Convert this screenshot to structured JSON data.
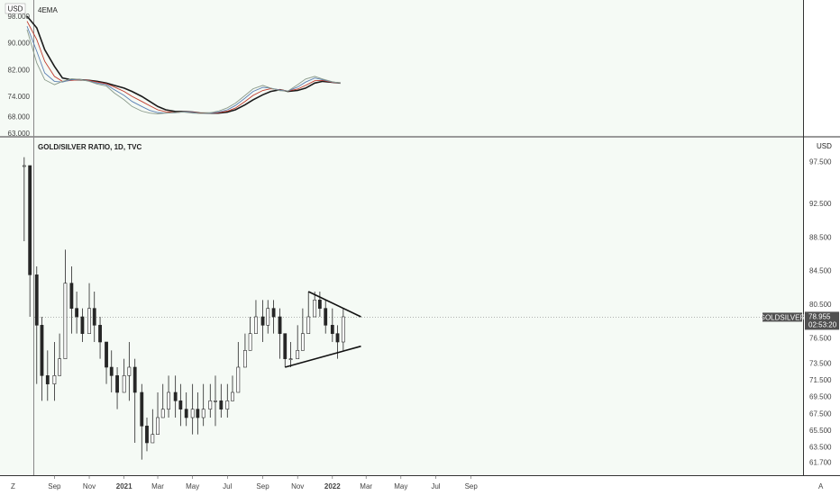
{
  "currency": "USD",
  "indicator": {
    "name": "4EMA",
    "y_ticks": [
      "98.000",
      "90.000",
      "82.000",
      "74.000",
      "68.000",
      "63.000"
    ]
  },
  "main": {
    "title": "GOLD/SILVER RATIO, 1D, TVC",
    "y_ticks": [
      "97.500",
      "92.500",
      "88.500",
      "84.500",
      "80.500",
      "76.500",
      "73.500",
      "71.500",
      "69.500",
      "67.500",
      "65.500",
      "63.500",
      "61.700"
    ],
    "last_symbol": "GOLDSILVER",
    "last_price": "78.955",
    "countdown": "02:53:20"
  },
  "x_ticks": [
    "Sep",
    "Nov",
    "2021",
    "Mar",
    "May",
    "Jul",
    "Sep",
    "Nov",
    "2022",
    "Mar",
    "May",
    "Jul",
    "Sep"
  ],
  "footer": {
    "tz_label": "Z",
    "scale_label": "A"
  },
  "colors": {
    "bg": "#ffffff",
    "plot_bg": "#f5faf5",
    "candle": "#262626",
    "ema_black": "#1a1a1a",
    "ema_red": "#c0392b",
    "ema_blue": "#5b7fb3",
    "ema_gray": "#8a9a8a",
    "badge": "#505050"
  },
  "chart_data": [
    {
      "type": "line",
      "title": "4EMA",
      "x": [
        "2020-07-15",
        "2020-08-01",
        "2020-08-15",
        "2020-09-01",
        "2020-09-15",
        "2020-10-01",
        "2020-10-15",
        "2020-11-01",
        "2020-11-15",
        "2020-12-01",
        "2020-12-15",
        "2021-01-01",
        "2021-01-15",
        "2021-02-01",
        "2021-02-15",
        "2021-03-01",
        "2021-03-15",
        "2021-04-01",
        "2021-04-15",
        "2021-05-01",
        "2021-05-15",
        "2021-06-01",
        "2021-06-15",
        "2021-07-01",
        "2021-07-15",
        "2021-08-01",
        "2021-08-15",
        "2021-09-01",
        "2021-09-15",
        "2021-10-01",
        "2021-10-15",
        "2021-11-01",
        "2021-11-15",
        "2021-12-01",
        "2021-12-15",
        "2022-01-01",
        "2022-01-15"
      ],
      "series": [
        {
          "values": [
            98.0,
            94.5,
            88.0,
            83.0,
            79.5,
            79.0,
            79.0,
            78.8,
            78.5,
            78.0,
            77.3,
            76.5,
            75.5,
            74.0,
            72.5,
            71.0,
            70.0,
            69.5,
            69.5,
            69.3,
            69.0,
            69.0,
            69.0,
            69.3,
            70.0,
            71.5,
            73.0,
            74.5,
            75.5,
            76.0,
            75.5,
            75.8,
            76.5,
            78.0,
            78.5,
            78.2,
            78.0
          ]
        },
        {
          "values": [
            96.5,
            91.0,
            84.5,
            80.0,
            78.5,
            78.8,
            79.0,
            78.8,
            78.3,
            77.8,
            76.8,
            75.5,
            74.0,
            72.5,
            71.2,
            70.0,
            69.4,
            69.2,
            69.4,
            69.3,
            69.0,
            69.0,
            69.1,
            69.6,
            70.5,
            72.5,
            74.3,
            75.8,
            76.3,
            76.0,
            75.6,
            76.2,
            77.3,
            78.7,
            78.8,
            78.2,
            78.0
          ]
        },
        {
          "values": [
            95.0,
            87.5,
            81.0,
            78.5,
            78.3,
            79.0,
            79.1,
            78.6,
            78.0,
            77.5,
            76.0,
            74.3,
            72.5,
            71.0,
            69.8,
            69.2,
            69.0,
            69.1,
            69.4,
            69.2,
            68.9,
            69.0,
            69.3,
            70.0,
            71.3,
            73.5,
            75.5,
            76.7,
            76.5,
            75.9,
            75.6,
            76.8,
            78.3,
            79.5,
            79.0,
            78.3,
            78.0
          ]
        },
        {
          "values": [
            94.0,
            84.0,
            79.0,
            77.5,
            78.5,
            79.3,
            79.1,
            78.5,
            77.7,
            77.1,
            75.0,
            73.0,
            71.0,
            69.6,
            69.0,
            68.8,
            69.0,
            69.2,
            69.3,
            69.0,
            68.9,
            69.1,
            69.6,
            70.6,
            72.0,
            74.3,
            76.3,
            77.3,
            76.5,
            75.7,
            75.6,
            77.5,
            79.2,
            80.0,
            79.2,
            78.4,
            78.0
          ]
        }
      ]
    },
    {
      "type": "candlestick",
      "title": "GOLD/SILVER RATIO, 1D, TVC",
      "ylim": [
        61.0,
        98.5
      ],
      "x": [
        "2020-07-10",
        "2020-07-20",
        "2020-08-01",
        "2020-08-10",
        "2020-08-20",
        "2020-09-01",
        "2020-09-10",
        "2020-09-20",
        "2020-10-01",
        "2020-10-10",
        "2020-10-20",
        "2020-11-01",
        "2020-11-10",
        "2020-11-20",
        "2020-12-01",
        "2020-12-10",
        "2020-12-20",
        "2021-01-01",
        "2021-01-10",
        "2021-01-20",
        "2021-02-01",
        "2021-02-10",
        "2021-02-20",
        "2021-03-01",
        "2021-03-10",
        "2021-03-20",
        "2021-04-01",
        "2021-04-10",
        "2021-04-20",
        "2021-05-01",
        "2021-05-10",
        "2021-05-20",
        "2021-06-01",
        "2021-06-10",
        "2021-06-20",
        "2021-07-01",
        "2021-07-10",
        "2021-07-20",
        "2021-08-01",
        "2021-08-10",
        "2021-08-20",
        "2021-09-01",
        "2021-09-10",
        "2021-09-20",
        "2021-10-01",
        "2021-10-10",
        "2021-10-20",
        "2021-11-01",
        "2021-11-10",
        "2021-11-20",
        "2021-12-01",
        "2021-12-10",
        "2021-12-20",
        "2022-01-01",
        "2022-01-10",
        "2022-01-20"
      ],
      "close": [
        97,
        84,
        78,
        72,
        71,
        72,
        74,
        83,
        80,
        79,
        77,
        80,
        78,
        76,
        73,
        72,
        70,
        72,
        73,
        70,
        66,
        64,
        65,
        67,
        68,
        70,
        69,
        68,
        67,
        68,
        67,
        68,
        69,
        69,
        68,
        69,
        70,
        73,
        75,
        77,
        79,
        78,
        80,
        79,
        77,
        74,
        74,
        75,
        77,
        79,
        81,
        80,
        78,
        77,
        76,
        79
      ],
      "high": [
        98,
        91,
        85,
        79,
        75,
        76,
        77,
        87,
        85,
        82,
        80,
        83,
        82,
        79,
        76,
        75,
        73,
        74,
        76,
        74,
        71,
        67,
        68,
        70,
        71,
        72,
        72,
        71,
        70,
        71,
        70,
        71,
        71,
        72,
        71,
        71,
        72,
        76,
        77,
        79,
        81,
        81,
        81,
        81,
        80,
        77,
        76,
        78,
        80,
        82,
        82,
        82,
        81,
        80,
        78,
        80
      ],
      "low": [
        88,
        79,
        71,
        69,
        69,
        69,
        72,
        75,
        77,
        77,
        76,
        77,
        76,
        74,
        71,
        70,
        68,
        70,
        69,
        64,
        62,
        63,
        64,
        66,
        67,
        67,
        67,
        66,
        66,
        65,
        65,
        66,
        67,
        66,
        67,
        67,
        69,
        71,
        73,
        75,
        77,
        76,
        77,
        77,
        74,
        73,
        73,
        74,
        76,
        78,
        79,
        79,
        77,
        76,
        74,
        75
      ],
      "trendlines": [
        {
          "name": "upper",
          "points": [
            [
              "2021-11-20",
              82.0
            ],
            [
              "2022-02-20",
              79.0
            ]
          ]
        },
        {
          "name": "lower",
          "points": [
            [
              "2021-10-10",
              73.0
            ],
            [
              "2022-02-20",
              75.5
            ]
          ]
        }
      ],
      "last_value": 78.955
    }
  ]
}
